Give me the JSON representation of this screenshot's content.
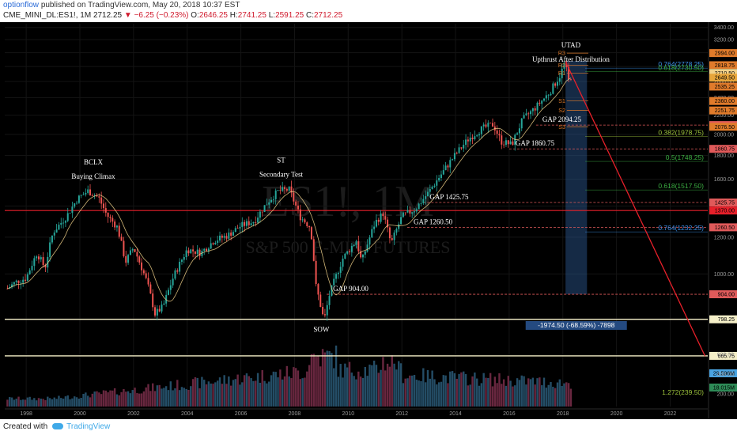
{
  "header": {
    "author": "optionflow",
    "published": "published on TradingView.com, May 20, 2018 10:37 EST",
    "symbol": "CME_MINI_DL:ES1!, 1M",
    "last": "2712.25",
    "change": "−6.25 (−0.23%)",
    "open_label": "O:",
    "open": "2646.25",
    "high_label": "H:",
    "high": "2741.25",
    "low_label": "L:",
    "low": "2591.25",
    "close_label": "C:",
    "close": "2712.25"
  },
  "watermark": {
    "symbol": "ES1!, 1M",
    "name": "S&P 500 E-MINI FUTURES"
  },
  "footer": {
    "created_with": "Created with",
    "brand": "TradingView"
  },
  "colors": {
    "up": "#26a69a",
    "down": "#ef5350",
    "gap": "#e05a5a",
    "trend": "#e8202a",
    "fib_blue": "#3b8ee6",
    "fib_green": "#3cb043",
    "fib_olive": "#9cc23b",
    "ma": "#f2d28a"
  },
  "chart_data": {
    "type": "candlestick",
    "x_ticks": [
      "1998",
      "2000",
      "2002",
      "2004",
      "2006",
      "2008",
      "2010",
      "2012",
      "2014",
      "2016",
      "2018",
      "2020",
      "2022"
    ],
    "x_range": [
      1997.2,
      2023.4
    ],
    "price_axis": {
      "scale": "log",
      "range": [
        720,
        3450
      ],
      "ticks": [
        800,
        1000,
        1200,
        1400,
        1600,
        1800,
        2000,
        2200,
        2400,
        2600,
        2800,
        3000,
        3200,
        3400
      ]
    },
    "price_path": [
      [
        1997.3,
        930
      ],
      [
        1997.6,
        960
      ],
      [
        1998.0,
        980
      ],
      [
        1998.4,
        1110
      ],
      [
        1998.7,
        1030
      ],
      [
        1999.0,
        1230
      ],
      [
        1999.5,
        1330
      ],
      [
        1999.9,
        1450
      ],
      [
        2000.3,
        1510
      ],
      [
        2000.7,
        1460
      ],
      [
        2001.0,
        1340
      ],
      [
        2001.4,
        1260
      ],
      [
        2001.7,
        1060
      ],
      [
        2002.0,
        1140
      ],
      [
        2002.5,
        960
      ],
      [
        2002.8,
        820
      ],
      [
        2003.1,
        850
      ],
      [
        2003.5,
        990
      ],
      [
        2004.0,
        1130
      ],
      [
        2004.5,
        1110
      ],
      [
        2005.0,
        1180
      ],
      [
        2005.5,
        1210
      ],
      [
        2006.0,
        1270
      ],
      [
        2006.5,
        1300
      ],
      [
        2007.0,
        1430
      ],
      [
        2007.4,
        1510
      ],
      [
        2007.8,
        1520
      ],
      [
        2008.2,
        1330
      ],
      [
        2008.6,
        1260
      ],
      [
        2008.8,
        940
      ],
      [
        2009.1,
        790
      ],
      [
        2009.3,
        900
      ],
      [
        2009.8,
        1080
      ],
      [
        2010.3,
        1180
      ],
      [
        2010.5,
        1060
      ],
      [
        2011.0,
        1290
      ],
      [
        2011.3,
        1350
      ],
      [
        2011.6,
        1160
      ],
      [
        2012.0,
        1330
      ],
      [
        2012.5,
        1380
      ],
      [
        2013.0,
        1500
      ],
      [
        2013.5,
        1650
      ],
      [
        2014.0,
        1810
      ],
      [
        2014.5,
        1960
      ],
      [
        2015.0,
        2060
      ],
      [
        2015.4,
        2100
      ],
      [
        2015.7,
        1930
      ],
      [
        2016.1,
        1900
      ],
      [
        2016.5,
        2150
      ],
      [
        2017.0,
        2290
      ],
      [
        2017.5,
        2460
      ],
      [
        2017.9,
        2680
      ],
      [
        2018.08,
        2870
      ],
      [
        2018.2,
        2600
      ],
      [
        2018.38,
        2712
      ]
    ],
    "volume_labels": [
      "29.596M",
      "18.015M"
    ],
    "price_tags": [
      {
        "value": 2994.0,
        "label": "2994.00",
        "color": "#e07b2b"
      },
      {
        "value": 2818.75,
        "label": "2818.75",
        "color": "#e07b2b"
      },
      {
        "value": 2712.25,
        "label": "2712.25",
        "color": "#26a69a"
      },
      {
        "value": 2710.5,
        "label": "2710.50",
        "color": "#f2d28a"
      },
      {
        "value": 2649.5,
        "label": "2649.50",
        "color": "#e8a63b"
      },
      {
        "value": 2535.25,
        "label": "2535.25",
        "color": "#e07b2b"
      },
      {
        "value": 2360.0,
        "label": "2360.00",
        "color": "#e07b2b"
      },
      {
        "value": 2251.75,
        "label": "2251.75",
        "color": "#e07b2b"
      },
      {
        "value": 2094.25,
        "label": "2094.25",
        "color": "#e05a5a"
      },
      {
        "value": 2076.5,
        "label": "2076.50",
        "color": "#e07b2b"
      },
      {
        "value": 1860.75,
        "label": "1860.75",
        "color": "#e05a5a"
      },
      {
        "value": 1425.75,
        "label": "1425.75",
        "color": "#e05a5a"
      },
      {
        "value": 1370.0,
        "label": "1370.00",
        "color": "#e8202a"
      },
      {
        "value": 1260.5,
        "label": "1260.50",
        "color": "#e05a5a"
      },
      {
        "value": 904.0,
        "label": "904.00",
        "color": "#e05a5a"
      },
      {
        "value": 798.25,
        "label": "798.25",
        "color": "#f5efc8"
      },
      {
        "value": 665.75,
        "label": "665.75",
        "color": "#f5efc8"
      }
    ],
    "fib_levels": [
      {
        "value": 2778.25,
        "label": "0.764(2778.25)",
        "color": "#3b8ee6"
      },
      {
        "value": 2730.5,
        "label": "0.618(2730.50)",
        "color": "#3cb043"
      },
      {
        "value": 1978.75,
        "label": "0.382(1978.75)",
        "color": "#9cc23b"
      },
      {
        "value": 1748.25,
        "label": "0.5(1748.25)",
        "color": "#3cb043"
      },
      {
        "value": 1517.5,
        "label": "0.618(1517.50)",
        "color": "#3cb043"
      },
      {
        "value": 1232.25,
        "label": "0.764(1232.25)",
        "color": "#3b8ee6"
      },
      {
        "value": 239.5,
        "label": "1.272(239.50)",
        "color": "#9cc23b"
      }
    ],
    "pivots": [
      {
        "label": "R3",
        "value": 2994.0
      },
      {
        "label": "R2",
        "value": 2818.75
      },
      {
        "label": "R1",
        "value": 2710.5
      },
      {
        "label": "S1",
        "value": 2360.0
      },
      {
        "label": "S2",
        "value": 2251.75
      },
      {
        "label": "S3",
        "value": 2076.5
      }
    ],
    "gaps": [
      {
        "label": "GAP 2094.25",
        "value": 2094.25,
        "from": 2017.0
      },
      {
        "label": "GAP 1860.75",
        "value": 1860.75,
        "from": 2016.0
      },
      {
        "label": "GAP 1425.75",
        "value": 1425.75,
        "from": 2012.8
      },
      {
        "label": "GAP 1260.50",
        "value": 1260.5,
        "from": 2012.2
      },
      {
        "label": "GAP 904.00",
        "value": 904.0,
        "from": 2009.2
      }
    ],
    "annotations": [
      {
        "lines": [
          "BCLX",
          "Buying Climax"
        ],
        "x": 2000.5,
        "value": 1720
      },
      {
        "lines": [
          "ST",
          "Secondary Test"
        ],
        "x": 2007.5,
        "value": 1740
      },
      {
        "lines": [
          "UTAD",
          "Upthrust After Distribution"
        ],
        "x": 2018.3,
        "value": 3080
      },
      {
        "lines": [
          "SOW"
        ],
        "x": 2009.0,
        "value": 750
      }
    ],
    "measure": {
      "label": "-1974.50 (-68.59%) -7898",
      "from_year": 2018.1,
      "to_year": 2018.9,
      "top": 2880,
      "bottom": 904
    },
    "trend_line": {
      "from": [
        2018.1,
        2870
      ],
      "to": [
        2023.3,
        665
      ]
    }
  }
}
